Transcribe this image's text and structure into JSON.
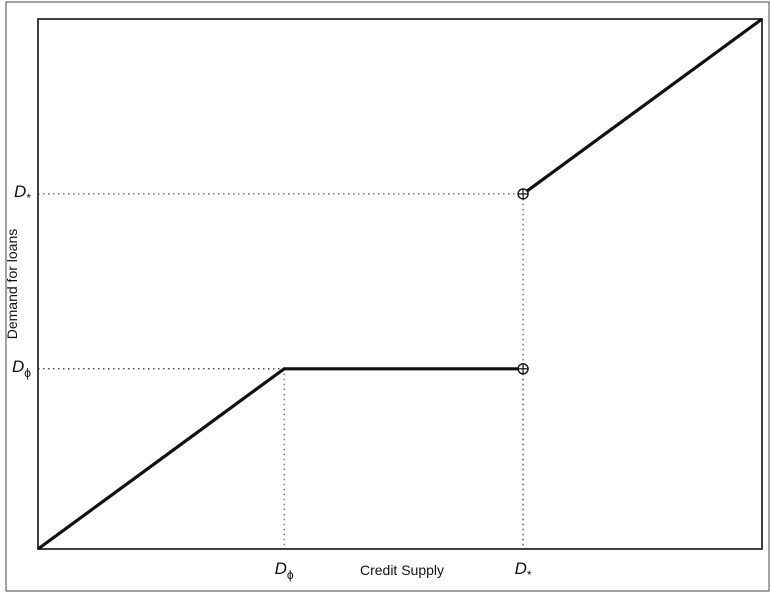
{
  "chart_data": {
    "type": "line",
    "title": "",
    "xlabel": "Credit Supply",
    "ylabel": "Demand for loans",
    "xlim": [
      0,
      1
    ],
    "ylim": [
      0,
      1
    ],
    "grid": false,
    "series": [
      {
        "values": [
          {
            "x": 0.0,
            "y": 0.0
          },
          {
            "x": 0.34,
            "y": 0.34
          },
          {
            "x": 0.67,
            "y": 0.34
          }
        ],
        "open_end": true
      },
      {
        "values": [
          {
            "x": 0.67,
            "y": 0.67
          },
          {
            "x": 1.0,
            "y": 1.0
          }
        ],
        "open_start": true
      }
    ],
    "x_ticks": [
      {
        "value": 0.34,
        "label": "D",
        "sub": "ϕ"
      },
      {
        "value": 0.67,
        "label": "D",
        "sub": "*"
      }
    ],
    "y_ticks": [
      {
        "value": 0.34,
        "label": "D",
        "sub": "ϕ"
      },
      {
        "value": 0.67,
        "label": "D",
        "sub": "*"
      }
    ],
    "reference_lines": [
      {
        "x": 0.34,
        "y": 0.34
      },
      {
        "x": 0.67,
        "y": 0.34
      },
      {
        "x": 0.67,
        "y": 0.67
      }
    ],
    "series_color": "#111111",
    "guide_color": "#333333"
  }
}
